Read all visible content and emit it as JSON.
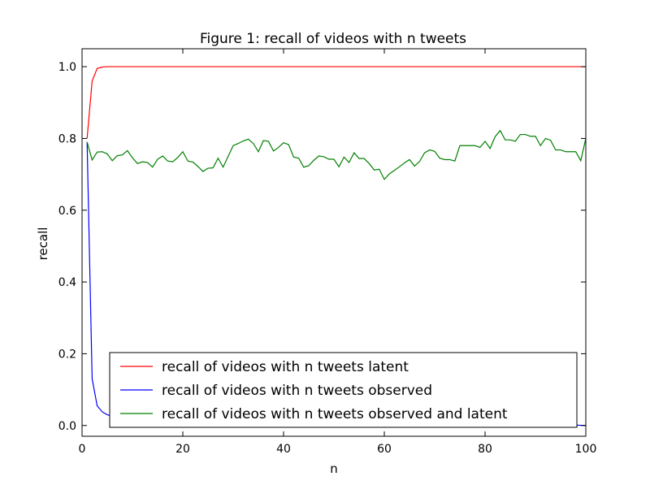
{
  "chart_data": {
    "type": "line",
    "title": "Figure 1: recall of videos with n tweets",
    "xlabel": "n",
    "ylabel": "recall",
    "xlim": [
      0,
      100
    ],
    "ylim": [
      -0.03,
      1.05
    ],
    "xticks": [
      0,
      20,
      40,
      60,
      80,
      100
    ],
    "xtick_labels": [
      "0",
      "20",
      "40",
      "60",
      "80",
      "100"
    ],
    "yticks": [
      0.0,
      0.2,
      0.4,
      0.6,
      0.8,
      1.0
    ],
    "ytick_labels": [
      "0.0",
      "0.2",
      "0.4",
      "0.6",
      "0.8",
      "1.0"
    ],
    "grid": false,
    "legend_position": "lower-center",
    "series": [
      {
        "name": "recall of videos with n tweets latent",
        "color": "#ff0000",
        "x": [
          1,
          2,
          3,
          4,
          5,
          6,
          8,
          10,
          20,
          40,
          60,
          80,
          100
        ],
        "y": [
          0.8,
          0.96,
          0.995,
          0.999,
          1.0,
          1.0,
          1.0,
          1.0,
          1.0,
          1.0,
          1.0,
          1.0,
          1.0
        ]
      },
      {
        "name": "recall of videos with n tweets observed",
        "color": "#0000ff",
        "x": [
          1,
          2,
          3,
          4,
          5,
          6,
          7,
          8,
          10,
          15,
          20,
          30,
          40,
          50,
          60,
          70,
          80,
          90,
          95,
          98,
          100
        ],
        "y": [
          0.79,
          0.13,
          0.055,
          0.038,
          0.03,
          0.025,
          0.02,
          0.015,
          0.01,
          0.006,
          0.004,
          0.003,
          0.002,
          0.002,
          0.002,
          0.002,
          0.002,
          0.002,
          0.003,
          0.001,
          0.0
        ]
      },
      {
        "name": "recall of videos with n tweets observed and latent",
        "color": "#008000",
        "x": [
          1,
          2,
          3,
          4,
          5,
          6,
          7,
          8,
          9,
          10,
          11,
          12,
          13,
          14,
          15,
          16,
          17,
          18,
          19,
          20,
          21,
          22,
          23,
          24,
          25,
          26,
          27,
          28,
          29,
          30,
          31,
          32,
          33,
          34,
          35,
          36,
          37,
          38,
          39,
          40,
          41,
          42,
          43,
          44,
          45,
          46,
          47,
          48,
          49,
          50,
          51,
          52,
          53,
          54,
          55,
          56,
          57,
          58,
          59,
          60,
          61,
          62,
          63,
          64,
          65,
          66,
          67,
          68,
          69,
          70,
          71,
          72,
          73,
          74,
          75,
          76,
          77,
          78,
          79,
          80,
          81,
          82,
          83,
          84,
          85,
          86,
          87,
          88,
          89,
          90,
          91,
          92,
          93,
          94,
          95,
          96,
          97,
          98,
          99,
          100
        ],
        "y": [
          0.79,
          0.74,
          0.762,
          0.763,
          0.757,
          0.738,
          0.752,
          0.754,
          0.766,
          0.746,
          0.73,
          0.735,
          0.733,
          0.72,
          0.742,
          0.751,
          0.737,
          0.735,
          0.747,
          0.763,
          0.737,
          0.734,
          0.722,
          0.708,
          0.717,
          0.718,
          0.745,
          0.72,
          0.75,
          0.78,
          0.786,
          0.793,
          0.798,
          0.786,
          0.763,
          0.794,
          0.792,
          0.765,
          0.775,
          0.788,
          0.783,
          0.748,
          0.745,
          0.72,
          0.724,
          0.739,
          0.751,
          0.749,
          0.742,
          0.742,
          0.721,
          0.748,
          0.733,
          0.76,
          0.744,
          0.744,
          0.73,
          0.712,
          0.714,
          0.686,
          0.701,
          0.711,
          0.721,
          0.732,
          0.741,
          0.723,
          0.736,
          0.76,
          0.768,
          0.764,
          0.745,
          0.741,
          0.741,
          0.737,
          0.78,
          0.78,
          0.78,
          0.78,
          0.775,
          0.792,
          0.772,
          0.805,
          0.822,
          0.796,
          0.796,
          0.792,
          0.811,
          0.811,
          0.806,
          0.806,
          0.78,
          0.8,
          0.795,
          0.768,
          0.768,
          0.763,
          0.763,
          0.763,
          0.738,
          0.8
        ]
      }
    ]
  }
}
